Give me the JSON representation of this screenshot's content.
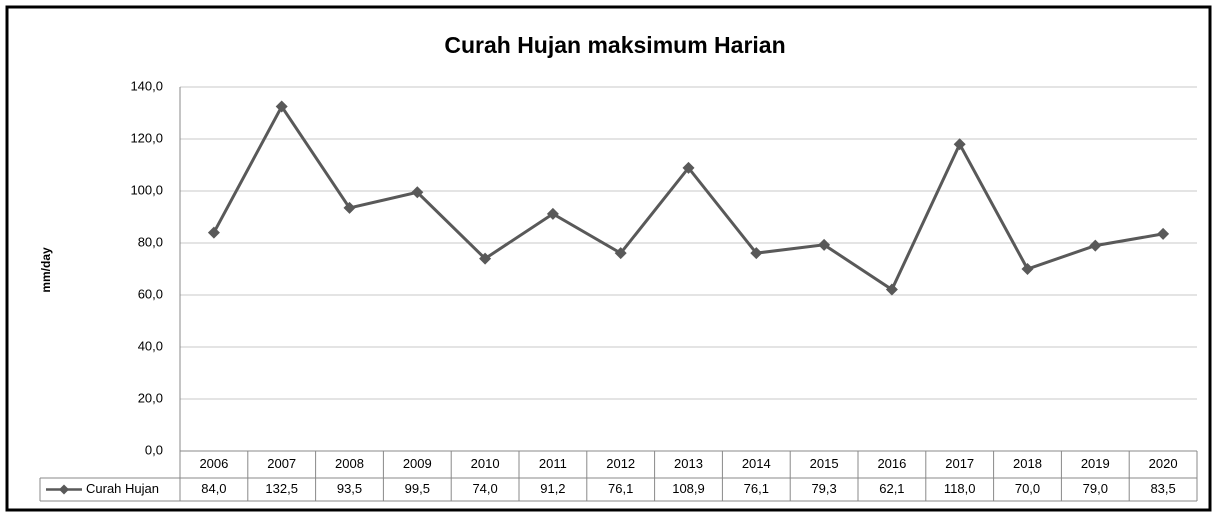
{
  "chart_data": {
    "type": "line",
    "title": "Curah Hujan maksimum Harian",
    "y_label": "mm/day",
    "categories": [
      "2006",
      "2007",
      "2008",
      "2009",
      "2010",
      "2011",
      "2012",
      "2013",
      "2014",
      "2015",
      "2016",
      "2017",
      "2018",
      "2019",
      "2020"
    ],
    "series": [
      {
        "name": "Curah Hujan",
        "color": "#595959",
        "values": [
          84.0,
          132.5,
          93.5,
          99.5,
          74.0,
          91.2,
          76.1,
          108.9,
          76.1,
          79.3,
          62.1,
          118.0,
          70.0,
          79.0,
          83.5
        ],
        "value_labels": [
          "84,0",
          "132,5",
          "93,5",
          "99,5",
          "74,0",
          "91,2",
          "76,1",
          "108,9",
          "76,1",
          "79,3",
          "62,1",
          "118,0",
          "70,0",
          "79,0",
          "83,5"
        ]
      }
    ],
    "ylim": [
      0,
      140
    ],
    "yticks": [
      {
        "value": 0,
        "label": "0,0"
      },
      {
        "value": 20,
        "label": "20,0"
      },
      {
        "value": 40,
        "label": "40,0"
      },
      {
        "value": 60,
        "label": "60,0"
      },
      {
        "value": 80,
        "label": "80,0"
      },
      {
        "value": 100,
        "label": "100,0"
      },
      {
        "value": 120,
        "label": "120,0"
      },
      {
        "value": 140,
        "label": "140,0"
      }
    ],
    "grid": true
  }
}
